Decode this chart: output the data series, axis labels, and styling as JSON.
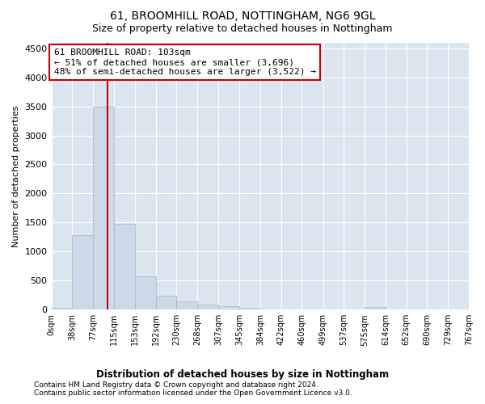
{
  "title1": "61, BROOMHILL ROAD, NOTTINGHAM, NG6 9GL",
  "title2": "Size of property relative to detached houses in Nottingham",
  "xlabel": "Distribution of detached houses by size in Nottingham",
  "ylabel": "Number of detached properties",
  "footer1": "Contains HM Land Registry data © Crown copyright and database right 2024.",
  "footer2": "Contains public sector information licensed under the Open Government Licence v3.0.",
  "annotation_line1": "61 BROOMHILL ROAD: 103sqm",
  "annotation_line2": "← 51% of detached houses are smaller (3,696)",
  "annotation_line3": "48% of semi-detached houses are larger (3,522) →",
  "bar_edges": [
    0,
    38,
    77,
    115,
    153,
    192,
    230,
    268,
    307,
    345,
    384,
    422,
    460,
    499,
    537,
    575,
    614,
    652,
    690,
    729,
    767
  ],
  "bar_heights": [
    30,
    1280,
    3500,
    1470,
    570,
    240,
    140,
    80,
    55,
    30,
    5,
    0,
    0,
    0,
    0,
    40,
    0,
    0,
    0,
    0
  ],
  "bar_color": "#ccd9e8",
  "bar_edgecolor": "#aabdd4",
  "vline_x": 103,
  "vline_color": "#cc0000",
  "ylim": [
    0,
    4600
  ],
  "yticks": [
    0,
    500,
    1000,
    1500,
    2000,
    2500,
    3000,
    3500,
    4000,
    4500
  ],
  "annotation_box_edgecolor": "#cc0000",
  "annotation_box_facecolor": "#ffffff",
  "fig_background": "#ffffff",
  "plot_bg_color": "#dce6f0"
}
